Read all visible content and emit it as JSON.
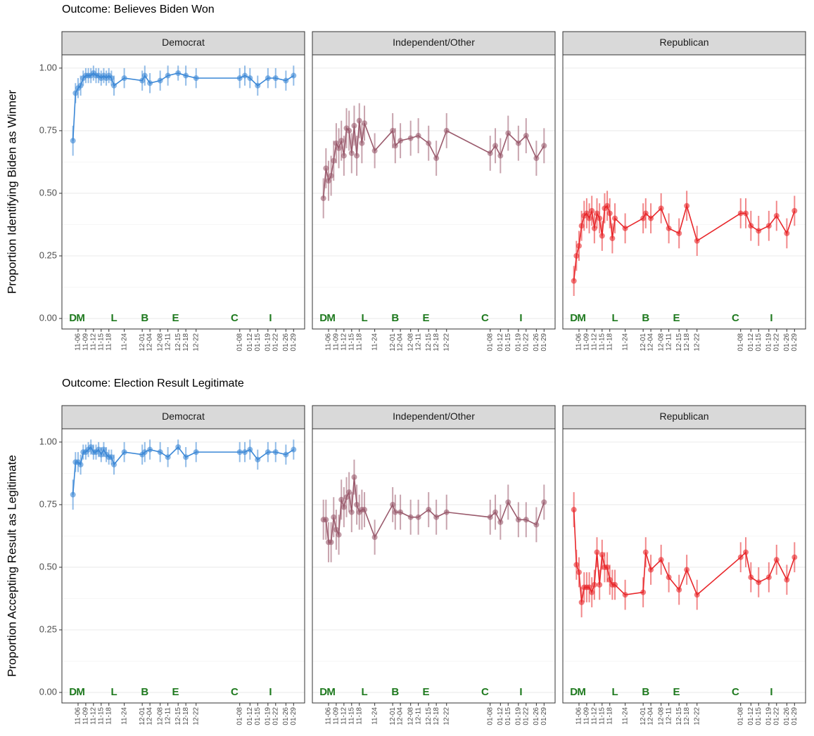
{
  "chart_data": [
    {
      "type": "line",
      "title": "Outcome: Believes Biden Won",
      "y_label": "Proportion Identifying Biden as Winner",
      "x": [
        "11-04",
        "11-05",
        "11-06",
        "11-07",
        "11-08",
        "11-09",
        "11-10",
        "11-11",
        "11-12",
        "11-13",
        "11-14",
        "11-15",
        "11-16",
        "11-17",
        "11-18",
        "11-19",
        "11-20",
        "11-24",
        "12-01",
        "12-02",
        "12-04",
        "12-08",
        "12-11",
        "12-15",
        "12-18",
        "12-22",
        "01-08",
        "01-10",
        "01-12",
        "01-15",
        "01-19",
        "01-22",
        "01-26",
        "01-29"
      ],
      "xticks": [
        "11-06",
        "11-09",
        "11-12",
        "11-15",
        "11-18",
        "11-24",
        "12-01",
        "12-04",
        "12-08",
        "12-11",
        "12-15",
        "12-18",
        "12-22",
        "01-08",
        "01-12",
        "01-15",
        "01-19",
        "01-22",
        "01-26",
        "01-29"
      ],
      "annotations": [
        {
          "label": "D",
          "x": "11-04"
        },
        {
          "label": "M",
          "x": "11-07"
        },
        {
          "label": "L",
          "x": "11-20"
        },
        {
          "label": "B",
          "x": "12-02"
        },
        {
          "label": "E",
          "x": "12-14"
        },
        {
          "label": "C",
          "x": "01-06"
        },
        {
          "label": "I",
          "x": "01-20"
        }
      ],
      "ylim": [
        -0.042,
        1.053
      ],
      "yticks": [
        {
          "value": 0,
          "label": "0.00"
        },
        {
          "value": 0.25,
          "label": "0.25"
        },
        {
          "value": 0.5,
          "label": "0.50"
        },
        {
          "value": 0.75,
          "label": "0.75"
        },
        {
          "value": 1,
          "label": "1.00"
        }
      ],
      "grid": true,
      "facets": [
        {
          "name": "Democrat",
          "color": "#3a87d6",
          "values": [
            0.71,
            0.9,
            0.92,
            0.93,
            0.96,
            0.97,
            0.97,
            0.97,
            0.98,
            0.97,
            0.97,
            0.96,
            0.97,
            0.96,
            0.97,
            0.96,
            0.93,
            0.96,
            0.95,
            0.97,
            0.94,
            0.95,
            0.97,
            0.98,
            0.97,
            0.96,
            0.96,
            0.97,
            0.96,
            0.93,
            0.96,
            0.96,
            0.95,
            0.97
          ],
          "errors": [
            0.06,
            0.04,
            0.04,
            0.04,
            0.03,
            0.03,
            0.03,
            0.03,
            0.03,
            0.03,
            0.03,
            0.03,
            0.03,
            0.03,
            0.03,
            0.03,
            0.04,
            0.04,
            0.04,
            0.04,
            0.04,
            0.04,
            0.04,
            0.03,
            0.04,
            0.04,
            0.04,
            0.04,
            0.04,
            0.04,
            0.04,
            0.04,
            0.04,
            0.04
          ]
        },
        {
          "name": "Independent/Other",
          "color": "#9a5a6c",
          "values": [
            0.48,
            0.6,
            0.55,
            0.57,
            0.63,
            0.7,
            0.68,
            0.71,
            0.65,
            0.76,
            0.75,
            0.66,
            0.77,
            0.65,
            0.79,
            0.7,
            0.78,
            0.67,
            0.75,
            0.69,
            0.71,
            0.72,
            0.73,
            0.7,
            0.64,
            0.75,
            0.66,
            0.69,
            0.65,
            0.74,
            0.7,
            0.73,
            0.64,
            0.69
          ],
          "errors": [
            0.08,
            0.08,
            0.08,
            0.08,
            0.08,
            0.08,
            0.08,
            0.08,
            0.08,
            0.08,
            0.08,
            0.08,
            0.08,
            0.08,
            0.07,
            0.08,
            0.07,
            0.07,
            0.07,
            0.07,
            0.07,
            0.07,
            0.07,
            0.07,
            0.07,
            0.07,
            0.07,
            0.07,
            0.07,
            0.07,
            0.07,
            0.07,
            0.07,
            0.07
          ]
        },
        {
          "name": "Republican",
          "color": "#e8262a",
          "values": [
            0.15,
            0.25,
            0.29,
            0.37,
            0.41,
            0.42,
            0.4,
            0.43,
            0.36,
            0.42,
            0.4,
            0.33,
            0.44,
            0.45,
            0.42,
            0.32,
            0.4,
            0.36,
            0.4,
            0.42,
            0.4,
            0.44,
            0.36,
            0.34,
            0.45,
            0.31,
            0.42,
            0.42,
            0.37,
            0.35,
            0.37,
            0.41,
            0.34,
            0.43
          ],
          "errors": [
            0.06,
            0.06,
            0.06,
            0.06,
            0.06,
            0.06,
            0.06,
            0.06,
            0.06,
            0.06,
            0.06,
            0.06,
            0.06,
            0.06,
            0.06,
            0.06,
            0.06,
            0.06,
            0.06,
            0.06,
            0.06,
            0.06,
            0.06,
            0.06,
            0.06,
            0.06,
            0.06,
            0.06,
            0.06,
            0.06,
            0.06,
            0.06,
            0.06,
            0.06
          ]
        }
      ]
    },
    {
      "type": "line",
      "title": "Outcome: Election Result Legitimate",
      "y_label": "Proportion Accepting Result as Legitimate",
      "x": [
        "11-04",
        "11-05",
        "11-06",
        "11-07",
        "11-08",
        "11-09",
        "11-10",
        "11-11",
        "11-12",
        "11-13",
        "11-14",
        "11-15",
        "11-16",
        "11-17",
        "11-18",
        "11-19",
        "11-20",
        "11-24",
        "12-01",
        "12-02",
        "12-04",
        "12-08",
        "12-11",
        "12-15",
        "12-18",
        "12-22",
        "01-08",
        "01-10",
        "01-12",
        "01-15",
        "01-19",
        "01-22",
        "01-26",
        "01-29"
      ],
      "xticks": [
        "11-06",
        "11-09",
        "11-12",
        "11-15",
        "11-18",
        "11-24",
        "12-01",
        "12-04",
        "12-08",
        "12-11",
        "12-15",
        "12-18",
        "12-22",
        "01-08",
        "01-12",
        "01-15",
        "01-19",
        "01-22",
        "01-26",
        "01-29"
      ],
      "annotations": [
        {
          "label": "D",
          "x": "11-04"
        },
        {
          "label": "M",
          "x": "11-07"
        },
        {
          "label": "L",
          "x": "11-20"
        },
        {
          "label": "B",
          "x": "12-02"
        },
        {
          "label": "E",
          "x": "12-14"
        },
        {
          "label": "C",
          "x": "01-06"
        },
        {
          "label": "I",
          "x": "01-20"
        }
      ],
      "ylim": [
        -0.042,
        1.053
      ],
      "yticks": [
        {
          "value": 0,
          "label": "0.00"
        },
        {
          "value": 0.25,
          "label": "0.25"
        },
        {
          "value": 0.5,
          "label": "0.50"
        },
        {
          "value": 0.75,
          "label": "0.75"
        },
        {
          "value": 1,
          "label": "1.00"
        }
      ],
      "grid": true,
      "facets": [
        {
          "name": "Democrat",
          "color": "#3a87d6",
          "values": [
            0.79,
            0.92,
            0.92,
            0.91,
            0.96,
            0.96,
            0.97,
            0.98,
            0.96,
            0.96,
            0.97,
            0.95,
            0.97,
            0.95,
            0.94,
            0.94,
            0.91,
            0.96,
            0.95,
            0.96,
            0.97,
            0.96,
            0.94,
            0.98,
            0.94,
            0.96,
            0.96,
            0.96,
            0.97,
            0.93,
            0.96,
            0.96,
            0.95,
            0.97
          ],
          "errors": [
            0.06,
            0.04,
            0.04,
            0.04,
            0.03,
            0.03,
            0.03,
            0.03,
            0.03,
            0.03,
            0.03,
            0.03,
            0.03,
            0.03,
            0.03,
            0.03,
            0.04,
            0.04,
            0.04,
            0.04,
            0.04,
            0.04,
            0.04,
            0.03,
            0.04,
            0.04,
            0.04,
            0.04,
            0.04,
            0.04,
            0.04,
            0.04,
            0.04,
            0.04
          ]
        },
        {
          "name": "Independent/Other",
          "color": "#9a5a6c",
          "values": [
            0.69,
            0.69,
            0.6,
            0.6,
            0.7,
            0.65,
            0.63,
            0.77,
            0.74,
            0.78,
            0.8,
            0.72,
            0.86,
            0.75,
            0.72,
            0.73,
            0.73,
            0.62,
            0.75,
            0.72,
            0.72,
            0.7,
            0.7,
            0.73,
            0.7,
            0.72,
            0.7,
            0.72,
            0.68,
            0.76,
            0.69,
            0.69,
            0.67,
            0.76
          ],
          "errors": [
            0.08,
            0.08,
            0.08,
            0.08,
            0.08,
            0.08,
            0.08,
            0.08,
            0.08,
            0.08,
            0.08,
            0.08,
            0.07,
            0.08,
            0.07,
            0.08,
            0.07,
            0.07,
            0.07,
            0.07,
            0.07,
            0.07,
            0.07,
            0.07,
            0.07,
            0.07,
            0.07,
            0.07,
            0.07,
            0.07,
            0.07,
            0.07,
            0.07,
            0.07
          ]
        },
        {
          "name": "Republican",
          "color": "#e8262a",
          "values": [
            0.73,
            0.51,
            0.48,
            0.36,
            0.42,
            0.42,
            0.42,
            0.4,
            0.43,
            0.56,
            0.43,
            0.55,
            0.5,
            0.5,
            0.45,
            0.43,
            0.43,
            0.39,
            0.4,
            0.56,
            0.49,
            0.53,
            0.46,
            0.41,
            0.49,
            0.39,
            0.54,
            0.56,
            0.46,
            0.44,
            0.46,
            0.53,
            0.45,
            0.54
          ],
          "errors": [
            0.07,
            0.06,
            0.06,
            0.06,
            0.06,
            0.06,
            0.06,
            0.06,
            0.06,
            0.06,
            0.06,
            0.06,
            0.06,
            0.06,
            0.06,
            0.06,
            0.06,
            0.06,
            0.06,
            0.06,
            0.06,
            0.06,
            0.06,
            0.06,
            0.06,
            0.06,
            0.06,
            0.06,
            0.06,
            0.06,
            0.06,
            0.06,
            0.06,
            0.06
          ]
        }
      ]
    }
  ]
}
